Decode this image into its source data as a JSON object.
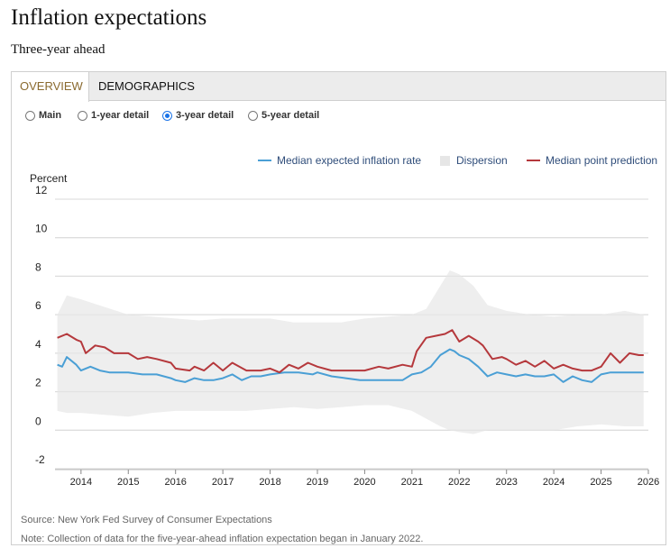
{
  "header": {
    "title": "Inflation expectations",
    "subtitle": "Three-year ahead"
  },
  "tabs": [
    {
      "label": "OVERVIEW",
      "active": true
    },
    {
      "label": "DEMOGRAPHICS",
      "active": false
    }
  ],
  "radio_options": [
    {
      "label": "Main",
      "selected": false
    },
    {
      "label": "1-year detail",
      "selected": false
    },
    {
      "label": "3-year detail",
      "selected": true
    },
    {
      "label": "5-year detail",
      "selected": false
    }
  ],
  "footer": {
    "source": "Source: New York Fed Survey of Consumer Expectations",
    "note": "Note: Collection of data for the five-year-ahead inflation expectation began in January 2022."
  },
  "colors": {
    "median": "#4a9fd5",
    "dispersion": "#eeeeee",
    "point": "#b5383c"
  },
  "chart_data": {
    "type": "line",
    "ylabel": "Percent",
    "ylim": [
      -2,
      12
    ],
    "yticks": [
      12,
      10,
      8,
      6,
      4,
      2,
      0,
      -2
    ],
    "xlim": [
      2013.45,
      2026.0
    ],
    "xticks": [
      2014,
      2015,
      2016,
      2017,
      2018,
      2019,
      2020,
      2021,
      2022,
      2023,
      2024,
      2025,
      2026
    ],
    "grid": true,
    "legend_position": "top-right",
    "series": [
      {
        "name": "Median expected inflation rate",
        "kind": "line",
        "x": [
          2013.5,
          2013.6,
          2013.7,
          2013.9,
          2014.0,
          2014.2,
          2014.4,
          2014.6,
          2014.8,
          2015.0,
          2015.3,
          2015.6,
          2015.9,
          2016.0,
          2016.2,
          2016.4,
          2016.6,
          2016.8,
          2017.0,
          2017.2,
          2017.4,
          2017.6,
          2017.8,
          2018.0,
          2018.3,
          2018.6,
          2018.9,
          2019.0,
          2019.3,
          2019.6,
          2019.9,
          2020.0,
          2020.3,
          2020.5,
          2020.8,
          2021.0,
          2021.2,
          2021.4,
          2021.6,
          2021.8,
          2021.9,
          2022.0,
          2022.2,
          2022.4,
          2022.6,
          2022.8,
          2023.0,
          2023.2,
          2023.4,
          2023.6,
          2023.8,
          2024.0,
          2024.2,
          2024.4,
          2024.6,
          2024.8,
          2025.0,
          2025.2,
          2025.4,
          2025.6,
          2025.8,
          2025.9
        ],
        "y": [
          3.4,
          3.3,
          3.8,
          3.4,
          3.1,
          3.3,
          3.1,
          3.0,
          3.0,
          3.0,
          2.9,
          2.9,
          2.7,
          2.6,
          2.5,
          2.7,
          2.6,
          2.6,
          2.7,
          2.9,
          2.6,
          2.8,
          2.8,
          2.9,
          3.0,
          3.0,
          2.9,
          3.0,
          2.8,
          2.7,
          2.6,
          2.6,
          2.6,
          2.6,
          2.6,
          2.9,
          3.0,
          3.3,
          3.9,
          4.2,
          4.1,
          3.9,
          3.7,
          3.3,
          2.8,
          3.0,
          2.9,
          2.8,
          2.9,
          2.8,
          2.8,
          2.9,
          2.5,
          2.8,
          2.6,
          2.5,
          2.9,
          3.0,
          3.0,
          3.0,
          3.0,
          3.0
        ]
      },
      {
        "name": "Dispersion",
        "kind": "band",
        "x": [
          2013.5,
          2013.7,
          2014.0,
          2014.5,
          2015.0,
          2015.5,
          2016.0,
          2016.5,
          2017.0,
          2017.5,
          2018.0,
          2018.5,
          2019.0,
          2019.5,
          2020.0,
          2020.5,
          2021.0,
          2021.3,
          2021.6,
          2021.8,
          2022.0,
          2022.3,
          2022.6,
          2023.0,
          2023.5,
          2024.0,
          2024.5,
          2025.0,
          2025.5,
          2025.9
        ],
        "upper": [
          6.0,
          7.0,
          6.8,
          6.4,
          6.0,
          5.9,
          5.8,
          5.7,
          5.8,
          5.8,
          5.8,
          5.6,
          5.6,
          5.6,
          5.8,
          5.9,
          6.0,
          6.3,
          7.5,
          8.3,
          8.1,
          7.5,
          6.5,
          6.2,
          6.0,
          5.9,
          6.0,
          6.0,
          6.2,
          6.0
        ],
        "lower": [
          1.0,
          0.9,
          0.9,
          0.8,
          0.7,
          0.9,
          1.0,
          1.0,
          1.0,
          1.0,
          1.1,
          1.2,
          1.1,
          1.2,
          1.3,
          1.3,
          1.0,
          0.6,
          0.2,
          0.0,
          -0.1,
          -0.2,
          0.0,
          0.0,
          0.0,
          0.0,
          0.2,
          0.3,
          0.2,
          0.2
        ]
      },
      {
        "name": "Median point prediction",
        "kind": "line",
        "x": [
          2013.5,
          2013.7,
          2013.9,
          2014.0,
          2014.1,
          2014.3,
          2014.5,
          2014.7,
          2014.8,
          2015.0,
          2015.2,
          2015.4,
          2015.6,
          2015.9,
          2016.0,
          2016.3,
          2016.4,
          2016.6,
          2016.8,
          2017.0,
          2017.2,
          2017.5,
          2017.8,
          2018.0,
          2018.2,
          2018.4,
          2018.6,
          2018.8,
          2019.0,
          2019.3,
          2019.6,
          2019.9,
          2020.0,
          2020.3,
          2020.5,
          2020.8,
          2021.0,
          2021.1,
          2021.3,
          2021.5,
          2021.7,
          2021.85,
          2022.0,
          2022.2,
          2022.4,
          2022.5,
          2022.7,
          2022.9,
          2023.0,
          2023.2,
          2023.4,
          2023.6,
          2023.8,
          2024.0,
          2024.2,
          2024.4,
          2024.6,
          2024.8,
          2025.0,
          2025.2,
          2025.4,
          2025.6,
          2025.8,
          2025.9
        ],
        "y": [
          4.8,
          5.0,
          4.7,
          4.6,
          4.0,
          4.4,
          4.3,
          4.0,
          4.0,
          4.0,
          3.7,
          3.8,
          3.7,
          3.5,
          3.2,
          3.1,
          3.3,
          3.1,
          3.5,
          3.1,
          3.5,
          3.1,
          3.1,
          3.2,
          3.0,
          3.4,
          3.2,
          3.5,
          3.3,
          3.1,
          3.1,
          3.1,
          3.1,
          3.3,
          3.2,
          3.4,
          3.3,
          4.1,
          4.8,
          4.9,
          5.0,
          5.2,
          4.6,
          4.9,
          4.6,
          4.4,
          3.7,
          3.8,
          3.7,
          3.4,
          3.6,
          3.3,
          3.6,
          3.2,
          3.4,
          3.2,
          3.1,
          3.1,
          3.3,
          4.0,
          3.5,
          4.0,
          3.9,
          3.9
        ]
      }
    ]
  }
}
